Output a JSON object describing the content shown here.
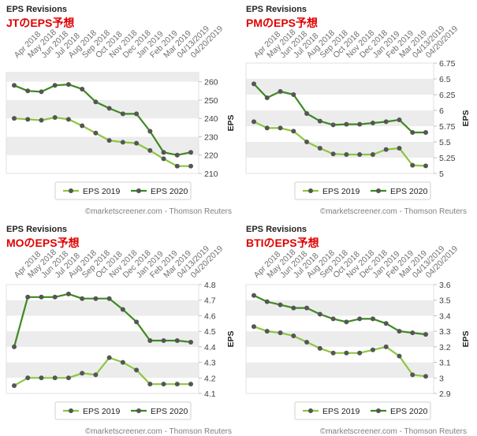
{
  "chart_data": [
    {
      "type": "line",
      "header": "EPS Revisions",
      "title": "JTのEPS予想",
      "ylabel": "EPS",
      "source": "©marketscreener.com - Thomson Reuters",
      "categories": [
        "Apr 2018",
        "May 2018",
        "Jun 2018",
        "Jul 2018",
        "Aug 2018",
        "Sep 2018",
        "Oct 2018",
        "Nov 2018",
        "Dec 2018",
        "Jan 2019",
        "Feb 2019",
        "Mar 2019",
        "04/13/2019",
        "04/20/2019"
      ],
      "ylim": [
        210,
        265
      ],
      "yticks": [
        210,
        220,
        230,
        240,
        250,
        260
      ],
      "series": [
        {
          "name": "EPS 2019",
          "color": "#8cc63f",
          "values": [
            240,
            239.5,
            239,
            240.5,
            239.5,
            236,
            232,
            228,
            227,
            226.5,
            222.5,
            218,
            214,
            214
          ]
        },
        {
          "name": "EPS 2020",
          "color": "#3d8a1f",
          "values": [
            258,
            255,
            254.5,
            258,
            258.5,
            256,
            249,
            245.5,
            242.5,
            242.5,
            233,
            221.5,
            220,
            221.5
          ]
        }
      ]
    },
    {
      "type": "line",
      "header": "EPS Revisions",
      "title": "PMのEPS予想",
      "ylabel": "EPS",
      "source": "©marketscreener.com - Thomson Reuters",
      "categories": [
        "Apr 2018",
        "May 2018",
        "Jun 2018",
        "Jul 2018",
        "Aug 2018",
        "Sep 2018",
        "Oct 2018",
        "Nov 2018",
        "Dec 2018",
        "Jan 2019",
        "Feb 2019",
        "Mar 2019",
        "04/13/2019",
        "04/20/2019"
      ],
      "ylim": [
        5,
        6.75
      ],
      "yticks": [
        5,
        5.25,
        5.5,
        5.75,
        6,
        6.25,
        6.5,
        6.75
      ],
      "series": [
        {
          "name": "EPS 2019",
          "color": "#8cc63f",
          "values": [
            5.82,
            5.72,
            5.72,
            5.67,
            5.5,
            5.4,
            5.31,
            5.3,
            5.3,
            5.3,
            5.38,
            5.4,
            5.13,
            5.12
          ]
        },
        {
          "name": "EPS 2020",
          "color": "#3d8a1f",
          "values": [
            6.42,
            6.2,
            6.3,
            6.25,
            5.95,
            5.83,
            5.77,
            5.78,
            5.78,
            5.8,
            5.82,
            5.85,
            5.65,
            5.65
          ]
        }
      ]
    },
    {
      "type": "line",
      "header": "EPS Revisions",
      "title": "MOのEPS予想",
      "ylabel": "EPS",
      "source": "©marketscreener.com - Thomson Reuters",
      "categories": [
        "Apr 2018",
        "May 2018",
        "Jun 2018",
        "Jul 2018",
        "Aug 2018",
        "Sep 2018",
        "Oct 2018",
        "Nov 2018",
        "Dec 2018",
        "Jan 2019",
        "Feb 2019",
        "Mar 2019",
        "04/13/2019",
        "04/20/2019"
      ],
      "ylim": [
        4.1,
        4.8
      ],
      "yticks": [
        4.1,
        4.2,
        4.3,
        4.4,
        4.5,
        4.6,
        4.7,
        4.8
      ],
      "series": [
        {
          "name": "EPS 2019",
          "color": "#8cc63f",
          "values": [
            4.15,
            4.2,
            4.2,
            4.2,
            4.2,
            4.23,
            4.22,
            4.33,
            4.3,
            4.25,
            4.16,
            4.16,
            4.16,
            4.16
          ]
        },
        {
          "name": "EPS 2020",
          "color": "#3d8a1f",
          "values": [
            4.4,
            4.72,
            4.72,
            4.72,
            4.74,
            4.71,
            4.71,
            4.71,
            4.64,
            4.56,
            4.44,
            4.44,
            4.44,
            4.43
          ]
        }
      ]
    },
    {
      "type": "line",
      "header": "EPS Revisions",
      "title": "BTIのEPS予想",
      "ylabel": "EPS",
      "source": "©marketscreener.com - Thomson Reuters",
      "categories": [
        "Apr 2018",
        "May 2018",
        "Jun 2018",
        "Jul 2018",
        "Aug 2018",
        "Sep 2018",
        "Oct 2018",
        "Nov 2018",
        "Dec 2018",
        "Jan 2019",
        "Feb 2019",
        "Mar 2019",
        "04/13/2019",
        "04/20/2019"
      ],
      "ylim": [
        2.9,
        3.6
      ],
      "yticks": [
        2.9,
        3,
        3.1,
        3.2,
        3.3,
        3.4,
        3.5,
        3.6
      ],
      "series": [
        {
          "name": "EPS 2019",
          "color": "#8cc63f",
          "values": [
            3.33,
            3.3,
            3.29,
            3.27,
            3.23,
            3.19,
            3.16,
            3.16,
            3.16,
            3.18,
            3.2,
            3.14,
            3.02,
            3.01
          ]
        },
        {
          "name": "EPS 2020",
          "color": "#3d8a1f",
          "values": [
            3.53,
            3.49,
            3.47,
            3.45,
            3.45,
            3.41,
            3.38,
            3.36,
            3.38,
            3.38,
            3.35,
            3.3,
            3.29,
            3.28
          ]
        }
      ]
    }
  ]
}
